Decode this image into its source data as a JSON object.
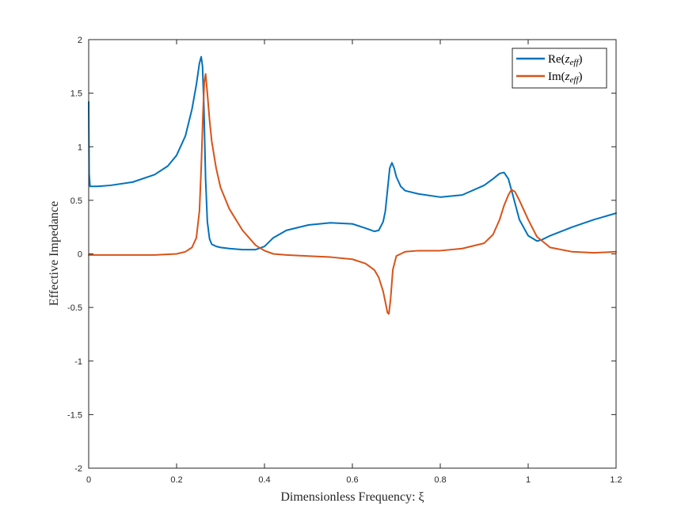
{
  "chart_data": {
    "type": "line",
    "xlabel": "Dimensionless Frequency: ξ",
    "ylabel": "Effective Impedance",
    "xlim": [
      0,
      1.2
    ],
    "ylim": [
      -2,
      2
    ],
    "xticks": [
      0,
      0.2,
      0.4,
      0.6,
      0.8,
      1,
      1.2
    ],
    "yticks": [
      -2,
      -1.5,
      -1,
      -0.5,
      0,
      0.5,
      1,
      1.5,
      2
    ],
    "xtick_labels": [
      "0",
      "0.2",
      "0.4",
      "0.6",
      "0.8",
      "1",
      "1.2"
    ],
    "ytick_labels": [
      "-2",
      "-1.5",
      "-1",
      "-0.5",
      "0",
      "0.5",
      "1",
      "1.5",
      "2"
    ],
    "grid": false,
    "legend_position": "top-right",
    "series": [
      {
        "name": "Re(z_eff)",
        "label_main": "Re(",
        "label_var": "z",
        "label_sub": "eff",
        "label_close": ")",
        "color": "#0072BD",
        "x": [
          0,
          0.001,
          0.003,
          0.02,
          0.05,
          0.1,
          0.15,
          0.18,
          0.2,
          0.22,
          0.235,
          0.245,
          0.252,
          0.256,
          0.259,
          0.262,
          0.266,
          0.27,
          0.275,
          0.28,
          0.29,
          0.3,
          0.32,
          0.35,
          0.38,
          0.4,
          0.42,
          0.45,
          0.5,
          0.55,
          0.6,
          0.63,
          0.65,
          0.66,
          0.67,
          0.675,
          0.68,
          0.685,
          0.69,
          0.695,
          0.7,
          0.71,
          0.72,
          0.75,
          0.8,
          0.85,
          0.9,
          0.92,
          0.935,
          0.945,
          0.955,
          0.965,
          0.98,
          1.0,
          1.02,
          1.03,
          1.05,
          1.1,
          1.15,
          1.2
        ],
        "y": [
          1.42,
          0.75,
          0.63,
          0.63,
          0.64,
          0.67,
          0.74,
          0.82,
          0.92,
          1.1,
          1.35,
          1.58,
          1.78,
          1.84,
          1.75,
          1.4,
          0.7,
          0.3,
          0.14,
          0.09,
          0.07,
          0.06,
          0.05,
          0.04,
          0.04,
          0.07,
          0.15,
          0.22,
          0.27,
          0.29,
          0.28,
          0.24,
          0.21,
          0.22,
          0.3,
          0.4,
          0.6,
          0.8,
          0.85,
          0.8,
          0.72,
          0.63,
          0.59,
          0.56,
          0.53,
          0.55,
          0.64,
          0.7,
          0.75,
          0.76,
          0.7,
          0.55,
          0.32,
          0.17,
          0.12,
          0.13,
          0.17,
          0.25,
          0.32,
          0.38
        ]
      },
      {
        "name": "Im(z_eff)",
        "label_main": "Im(",
        "label_var": "z",
        "label_sub": "eff",
        "label_close": ")",
        "color": "#D95319",
        "x": [
          0,
          0.05,
          0.1,
          0.15,
          0.2,
          0.22,
          0.235,
          0.245,
          0.252,
          0.256,
          0.26,
          0.263,
          0.266,
          0.27,
          0.275,
          0.28,
          0.29,
          0.3,
          0.32,
          0.35,
          0.38,
          0.4,
          0.42,
          0.45,
          0.5,
          0.55,
          0.6,
          0.63,
          0.65,
          0.66,
          0.67,
          0.675,
          0.68,
          0.683,
          0.687,
          0.692,
          0.7,
          0.72,
          0.75,
          0.8,
          0.85,
          0.9,
          0.92,
          0.935,
          0.945,
          0.955,
          0.962,
          0.97,
          0.98,
          1.0,
          1.02,
          1.05,
          1.1,
          1.15,
          1.2
        ],
        "y": [
          -0.01,
          -0.01,
          -0.01,
          -0.01,
          0.0,
          0.02,
          0.06,
          0.15,
          0.4,
          0.8,
          1.3,
          1.6,
          1.68,
          1.5,
          1.25,
          1.05,
          0.8,
          0.62,
          0.42,
          0.22,
          0.08,
          0.03,
          0.0,
          -0.01,
          -0.02,
          -0.03,
          -0.05,
          -0.09,
          -0.15,
          -0.22,
          -0.35,
          -0.45,
          -0.55,
          -0.56,
          -0.42,
          -0.15,
          -0.02,
          0.02,
          0.03,
          0.03,
          0.05,
          0.1,
          0.18,
          0.32,
          0.45,
          0.55,
          0.6,
          0.58,
          0.5,
          0.32,
          0.16,
          0.06,
          0.02,
          0.01,
          0.02
        ]
      }
    ]
  }
}
